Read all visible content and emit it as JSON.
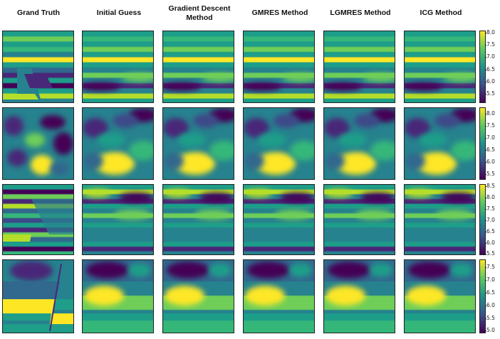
{
  "columns": [
    {
      "title": "Grand Truth"
    },
    {
      "title": "Initial Guess"
    },
    {
      "title": "Gradient Descent\nMethod"
    },
    {
      "title": "GMRES Method"
    },
    {
      "title": "LGMRES Method"
    },
    {
      "title": "ICG Method"
    }
  ],
  "colormap": "viridis",
  "colors": {
    "low": "#440154",
    "mid": "#21918c",
    "high": "#fde725"
  },
  "rows": [
    {
      "colorbar_ticks": [
        "8.0",
        "7.5",
        "7.0",
        "6.5",
        "6.0",
        "5.5"
      ],
      "range": [
        5.2,
        8.1
      ]
    },
    {
      "colorbar_ticks": [
        "8.0",
        "7.5",
        "7.0",
        "6.5",
        "6.0",
        "5.5"
      ],
      "range": [
        5.3,
        8.2
      ]
    },
    {
      "colorbar_ticks": [
        "8.5",
        "8.0",
        "7.5",
        "7.0",
        "6.5",
        "6.0",
        "5.5"
      ],
      "range": [
        5.4,
        8.6
      ]
    },
    {
      "colorbar_ticks": [
        "7.5",
        "7.0",
        "6.5",
        "6.0",
        "5.5",
        "5.0"
      ],
      "range": [
        4.9,
        7.7
      ]
    }
  ]
}
